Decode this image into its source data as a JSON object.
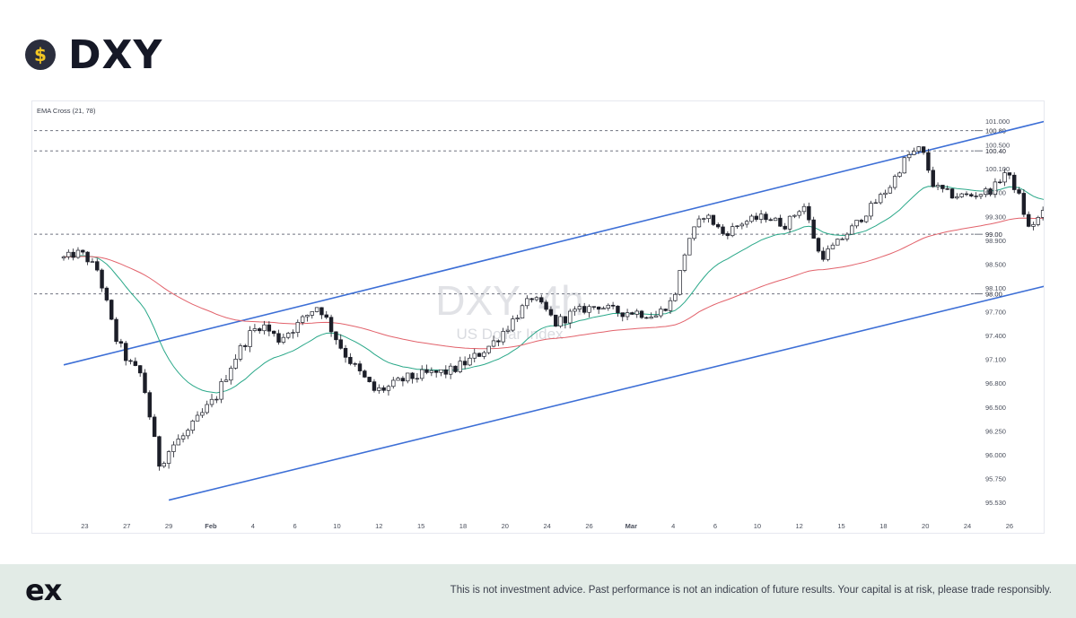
{
  "header": {
    "title": "DXY",
    "icon": "dollar-coin-icon",
    "icon_glyph": "$"
  },
  "chart_data": {
    "type": "candlestick",
    "indicator_label": "EMA Cross (21, 78)",
    "watermark": {
      "title": "DXY, 4h",
      "subtitle": "US Dollar Index"
    },
    "x_tick_labels": [
      "23",
      "27",
      "29",
      "Feb",
      "4",
      "6",
      "10",
      "12",
      "15",
      "18",
      "20",
      "24",
      "26",
      "Mar",
      "4",
      "6",
      "10",
      "12",
      "15",
      "18",
      "20",
      "24",
      "26"
    ],
    "y_axis_labels": [
      "101.000",
      "100.500",
      "100.100",
      "99.700",
      "99.300",
      "98.900",
      "98.500",
      "98.100",
      "97.700",
      "97.400",
      "97.100",
      "96.800",
      "96.500",
      "96.250",
      "96.000",
      "95.750",
      "95.530"
    ],
    "levels": [
      {
        "value": 100.8,
        "label": "100.80"
      },
      {
        "value": 100.4,
        "label": "100.40"
      },
      {
        "value": 99.0,
        "label": "99.00"
      },
      {
        "value": 98.0,
        "label": "98.00"
      }
    ],
    "channel": {
      "upper": [
        [
          0,
          97.03
        ],
        [
          49,
          101.25
        ]
      ],
      "lower": [
        [
          5,
          95.55
        ],
        [
          62,
          99.45
        ]
      ]
    },
    "anchors": [
      [
        0,
        98.6
      ],
      [
        0.8,
        98.7
      ],
      [
        1.6,
        98.4
      ],
      [
        2.4,
        97.4
      ],
      [
        3.1,
        97.05
      ],
      [
        3.7,
        96.9
      ],
      [
        4.5,
        95.9
      ],
      [
        5.2,
        96.1
      ],
      [
        6.0,
        96.25
      ],
      [
        7.2,
        96.6
      ],
      [
        8.0,
        97.05
      ],
      [
        8.8,
        97.4
      ],
      [
        9.4,
        97.55
      ],
      [
        10.2,
        97.35
      ],
      [
        11.2,
        97.55
      ],
      [
        12.1,
        97.8
      ],
      [
        12.7,
        97.5
      ],
      [
        13.3,
        97.2
      ],
      [
        14.0,
        96.95
      ],
      [
        14.8,
        96.7
      ],
      [
        15.5,
        96.75
      ],
      [
        16.2,
        96.85
      ],
      [
        17.0,
        96.9
      ],
      [
        18.4,
        96.95
      ],
      [
        19.4,
        97.1
      ],
      [
        20.4,
        97.3
      ],
      [
        21.4,
        97.6
      ],
      [
        22.3,
        97.95
      ],
      [
        23.4,
        97.55
      ],
      [
        24.3,
        97.7
      ],
      [
        25.4,
        97.8
      ],
      [
        26.4,
        97.7
      ],
      [
        27.2,
        97.7
      ],
      [
        28.2,
        97.65
      ],
      [
        29.0,
        97.9
      ],
      [
        29.7,
        98.9
      ],
      [
        30.5,
        99.35
      ],
      [
        31.4,
        99.0
      ],
      [
        32.3,
        99.2
      ],
      [
        33.4,
        99.3
      ],
      [
        34.3,
        99.15
      ],
      [
        35.2,
        99.5
      ],
      [
        36.0,
        98.6
      ],
      [
        36.8,
        98.85
      ],
      [
        37.5,
        99.1
      ],
      [
        38.4,
        99.45
      ],
      [
        39.3,
        99.8
      ],
      [
        40.1,
        100.3
      ],
      [
        40.8,
        100.45
      ],
      [
        41.4,
        99.8
      ],
      [
        42.3,
        99.65
      ],
      [
        43.2,
        99.65
      ],
      [
        44.2,
        99.75
      ],
      [
        44.8,
        100.05
      ],
      [
        45.4,
        99.7
      ],
      [
        45.9,
        99.1
      ],
      [
        46.6,
        99.35
      ],
      [
        47.3,
        99.45
      ],
      [
        47.9,
        99.05
      ],
      [
        48.5,
        99.25
      ],
      [
        48.7,
        99.3
      ]
    ],
    "ema_fast": {
      "name": "EMA 21",
      "period": 21,
      "color": "#2aa889"
    },
    "ema_slow": {
      "name": "EMA 78",
      "period": 78,
      "color": "#e2626b"
    },
    "colors": {
      "up": "#ffffff",
      "down": "#1c1e28",
      "wick": "#1c1e28",
      "channel": "#3d6fd6",
      "level": "#707480",
      "axis_text": "#4a4f5c"
    }
  },
  "footer": {
    "logo": "ex",
    "disclaimer": "This is not investment advice. Past performance is not an indication of future results. Your capital is at risk, please trade responsibly."
  }
}
